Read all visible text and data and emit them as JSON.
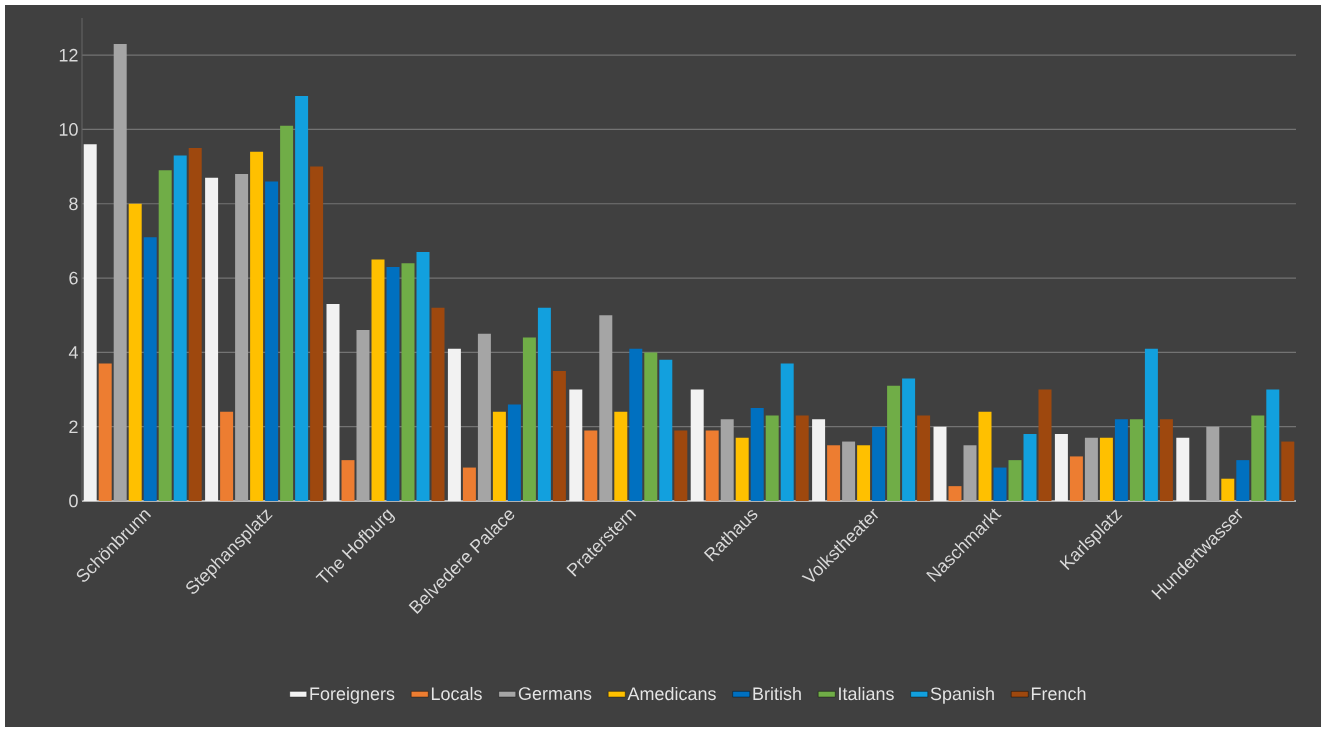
{
  "chart_data": {
    "type": "bar",
    "categories": [
      "Schönbrunn",
      "Stephansplatz",
      "The Hofburg",
      "Belvedere Palace",
      "Praterstern",
      "Rathaus",
      "Volkstheater",
      "Naschmarkt",
      "Karlsplatz",
      "Hundertwasser"
    ],
    "series": [
      {
        "name": "Foreigners",
        "color": "#f2f2f2",
        "values": [
          9.6,
          8.7,
          5.3,
          4.1,
          3.0,
          3.0,
          2.2,
          2.0,
          1.8,
          1.7
        ]
      },
      {
        "name": "Locals",
        "color": "#ed7d31",
        "values": [
          3.7,
          2.4,
          1.1,
          0.9,
          1.9,
          1.9,
          1.5,
          0.4,
          1.2,
          null
        ]
      },
      {
        "name": "Germans",
        "color": "#a5a5a5",
        "values": [
          12.3,
          8.8,
          4.6,
          4.5,
          5.0,
          2.2,
          1.6,
          1.5,
          1.7,
          2.0
        ]
      },
      {
        "name": "Amedicans",
        "color": "#ffc000",
        "values": [
          8.0,
          9.4,
          6.5,
          2.4,
          2.4,
          1.7,
          1.5,
          2.4,
          1.7,
          0.6
        ]
      },
      {
        "name": "British",
        "color": "#0070c0",
        "values": [
          7.1,
          8.6,
          6.3,
          2.6,
          4.1,
          2.5,
          2.0,
          0.9,
          2.2,
          1.1
        ]
      },
      {
        "name": "Italians",
        "color": "#70ad47",
        "values": [
          8.9,
          10.1,
          6.4,
          4.4,
          4.0,
          2.3,
          3.1,
          1.1,
          2.2,
          2.3
        ]
      },
      {
        "name": "Spanish",
        "color": "#12a0de",
        "values": [
          9.3,
          10.9,
          6.7,
          5.2,
          3.8,
          3.7,
          3.3,
          1.8,
          4.1,
          3.0
        ]
      },
      {
        "name": "French",
        "color": "#9e480e",
        "values": [
          9.5,
          9.0,
          5.2,
          3.5,
          1.9,
          2.3,
          2.3,
          3.0,
          2.2,
          1.6
        ]
      }
    ],
    "ylim": [
      0,
      13
    ],
    "yticks": [
      0,
      2,
      4,
      6,
      8,
      10,
      12
    ],
    "grid": "y",
    "legend": "bottom"
  }
}
